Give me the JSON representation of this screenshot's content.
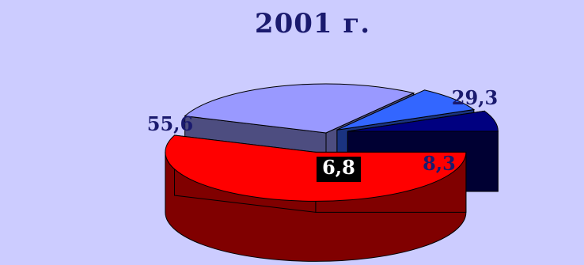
{
  "colors": {
    "background": "#ccccff",
    "title": "#1a1a6e"
  },
  "chart_data": {
    "type": "pie",
    "title": "2001 г.",
    "legend": "none",
    "slices": [
      {
        "value": 55.6,
        "label": "55,6",
        "top_color": "#ff0000",
        "side_color": "#800000",
        "label_color": "#1a1a6e"
      },
      {
        "value": 29.3,
        "label": "29,3",
        "top_color": "#9999ff",
        "side_color": "#4d4d80",
        "label_color": "#1a1a6e"
      },
      {
        "value": 8.3,
        "label": "8,3",
        "top_color": "#3366ff",
        "side_color": "#1a3380",
        "label_color": "#1a1a6e"
      },
      {
        "value": 6.8,
        "label": "6,8",
        "top_color": "#000080",
        "side_color": "#000033",
        "label_color": "#ffffff"
      }
    ]
  }
}
